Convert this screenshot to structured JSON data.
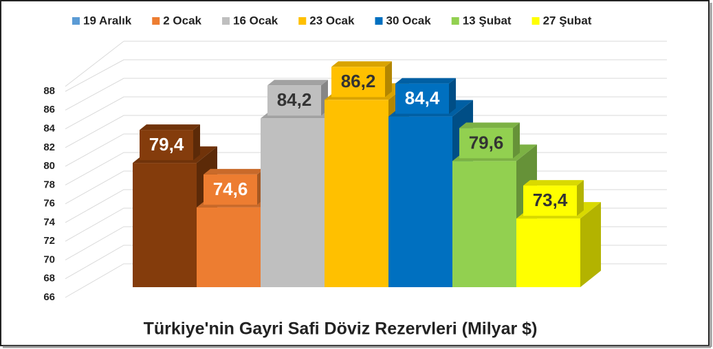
{
  "chart_data": {
    "type": "bar3d",
    "title": "Türkiye'nin Gayri Safi Döviz Rezervleri (Milyar $)",
    "series": [
      {
        "name": "19 Aralık",
        "color": "#5b9bd5",
        "bar_color": "#843c0c",
        "values": [
          79.4
        ],
        "value_labels": [
          "79,4"
        ]
      },
      {
        "name": "2 Ocak",
        "color": "#ed7d31",
        "values": [
          74.6
        ],
        "value_labels": [
          "74,6"
        ]
      },
      {
        "name": "16 Ocak",
        "color": "#bfbfbf",
        "values": [
          84.2
        ],
        "value_labels": [
          "84,2"
        ]
      },
      {
        "name": "23 Ocak",
        "color": "#ffc000",
        "values": [
          86.2
        ],
        "value_labels": [
          "86,2"
        ]
      },
      {
        "name": "30 Ocak",
        "color": "#0070c0",
        "values": [
          84.4
        ],
        "value_labels": [
          "84,4"
        ]
      },
      {
        "name": "13 Şubat",
        "color": "#92d050",
        "values": [
          79.6
        ],
        "value_labels": [
          "79,6"
        ]
      },
      {
        "name": "27 Şubat",
        "color": "#ffff00",
        "values": [
          73.4
        ],
        "value_labels": [
          "73,4"
        ]
      }
    ],
    "ylim": [
      66,
      90
    ],
    "yticks": [
      66,
      68,
      70,
      72,
      74,
      76,
      78,
      80,
      82,
      84,
      86,
      88
    ],
    "grid": true
  }
}
